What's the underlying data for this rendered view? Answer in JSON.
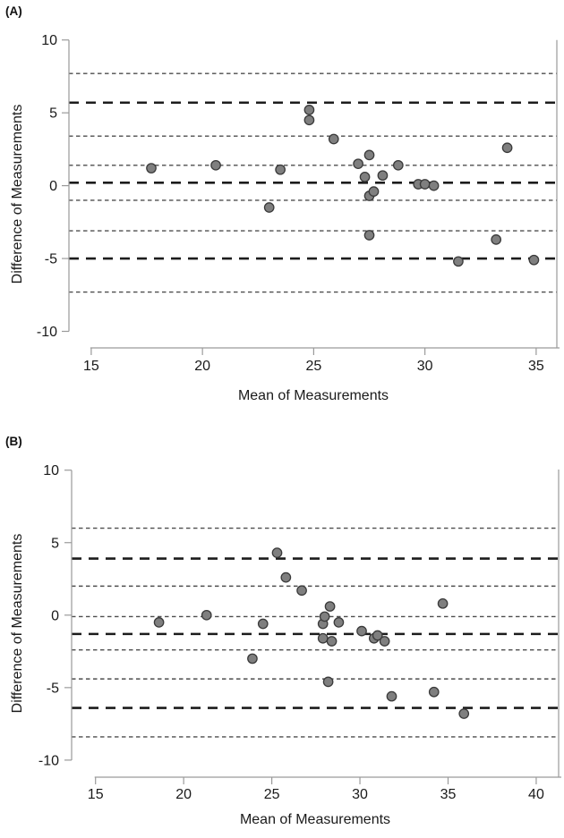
{
  "chart_data": [
    {
      "type": "scatter",
      "panel": "(A)",
      "xlabel": "Mean of Measurements",
      "ylabel": "Difference of Measurements",
      "x_ticks": [
        15,
        20,
        25,
        30,
        35
      ],
      "y_ticks": [
        10,
        5,
        0,
        -5,
        -10
      ],
      "xlim": [
        14.0,
        35.9
      ],
      "ylim": [
        -11.2,
        10.0
      ],
      "points": [
        [
          17.7,
          1.2
        ],
        [
          20.6,
          1.4
        ],
        [
          23.0,
          -1.5
        ],
        [
          23.5,
          1.1
        ],
        [
          24.8,
          5.2
        ],
        [
          24.8,
          4.5
        ],
        [
          25.9,
          3.2
        ],
        [
          27.0,
          1.5
        ],
        [
          27.3,
          0.6
        ],
        [
          27.5,
          2.1
        ],
        [
          27.5,
          -0.7
        ],
        [
          27.7,
          -0.4
        ],
        [
          27.5,
          -3.4
        ],
        [
          28.1,
          0.7
        ],
        [
          28.8,
          1.4
        ],
        [
          29.7,
          0.1
        ],
        [
          30.0,
          0.1
        ],
        [
          30.4,
          0.0
        ],
        [
          31.5,
          -5.2
        ],
        [
          33.2,
          -3.7
        ],
        [
          33.7,
          2.6
        ],
        [
          34.9,
          -5.1
        ]
      ],
      "hlines": [
        {
          "value": 7.7,
          "style": "thin",
          "role": "upper_loa_ci_hi"
        },
        {
          "value": 5.7,
          "style": "thick",
          "role": "upper_loa"
        },
        {
          "value": 3.4,
          "style": "thin",
          "role": "upper_loa_ci_lo"
        },
        {
          "value": 1.4,
          "style": "thin",
          "role": "bias_ci_hi"
        },
        {
          "value": 0.2,
          "style": "thick",
          "role": "mean_bias"
        },
        {
          "value": -1.0,
          "style": "thin",
          "role": "bias_ci_lo"
        },
        {
          "value": -3.1,
          "style": "thin",
          "role": "lower_loa_ci_hi"
        },
        {
          "value": -5.0,
          "style": "thick",
          "role": "lower_loa"
        },
        {
          "value": -7.3,
          "style": "thin",
          "role": "lower_loa_ci_lo"
        }
      ],
      "marker": {
        "fill": "#7f7f7f",
        "stroke": "#3a3a3a"
      },
      "line_colors": {
        "thick": "#1c1c1c",
        "thin": "#4d4d4d"
      },
      "axis_color": "#9a9a9a",
      "text_color": "#1a1a1a",
      "grid": false,
      "legend": "none"
    },
    {
      "type": "scatter",
      "panel": "(B)",
      "xlabel": "Mean of Measurements",
      "ylabel": "Difference of Measurements",
      "x_ticks": [
        15,
        20,
        25,
        30,
        35,
        40
      ],
      "y_ticks": [
        10,
        5,
        0,
        -5,
        -10
      ],
      "xlim": [
        13.6,
        41.3
      ],
      "ylim": [
        -11.2,
        10.1
      ],
      "points": [
        [
          18.6,
          -0.5
        ],
        [
          21.3,
          0.0
        ],
        [
          23.9,
          -3.0
        ],
        [
          24.5,
          -0.6
        ],
        [
          25.3,
          4.3
        ],
        [
          25.8,
          2.6
        ],
        [
          26.7,
          1.7
        ],
        [
          27.9,
          -0.6
        ],
        [
          27.9,
          -1.6
        ],
        [
          28.0,
          -0.1
        ],
        [
          28.2,
          -4.6
        ],
        [
          28.3,
          0.6
        ],
        [
          28.4,
          -1.8
        ],
        [
          28.8,
          -0.5
        ],
        [
          30.1,
          -1.1
        ],
        [
          30.8,
          -1.6
        ],
        [
          31.0,
          -1.4
        ],
        [
          31.4,
          -1.8
        ],
        [
          31.8,
          -5.6
        ],
        [
          34.2,
          -5.3
        ],
        [
          34.7,
          0.8
        ],
        [
          35.9,
          -6.8
        ]
      ],
      "hlines": [
        {
          "value": 6.0,
          "style": "thin",
          "role": "upper_loa_ci_hi"
        },
        {
          "value": 3.9,
          "style": "thick",
          "role": "upper_loa"
        },
        {
          "value": 2.0,
          "style": "thin",
          "role": "upper_loa_ci_lo"
        },
        {
          "value": -0.1,
          "style": "thin",
          "role": "bias_ci_hi"
        },
        {
          "value": -1.3,
          "style": "thick",
          "role": "mean_bias"
        },
        {
          "value": -2.4,
          "style": "thin",
          "role": "bias_ci_lo"
        },
        {
          "value": -4.4,
          "style": "thin",
          "role": "lower_loa_ci_hi"
        },
        {
          "value": -6.4,
          "style": "thick",
          "role": "lower_loa"
        },
        {
          "value": -8.4,
          "style": "thin",
          "role": "lower_loa_ci_lo"
        }
      ],
      "marker": {
        "fill": "#7f7f7f",
        "stroke": "#3a3a3a"
      },
      "line_colors": {
        "thick": "#1c1c1c",
        "thin": "#4d4d4d"
      },
      "axis_color": "#9a9a9a",
      "text_color": "#1a1a1a",
      "grid": false,
      "legend": "none"
    }
  ]
}
